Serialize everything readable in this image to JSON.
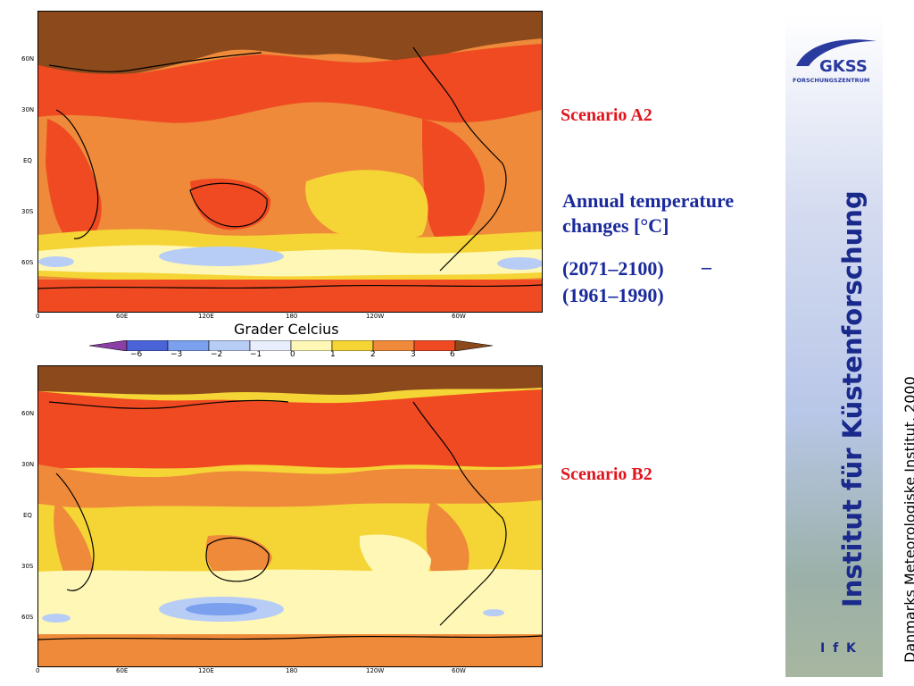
{
  "maps": {
    "a2": {
      "lat_ticks": [
        "60N",
        "30N",
        "EQ",
        "30S",
        "60S"
      ],
      "lon_ticks": [
        "0",
        "60E",
        "120E",
        "180",
        "120W",
        "60W"
      ]
    },
    "b2": {
      "lat_ticks": [
        "60N",
        "30N",
        "EQ",
        "30S",
        "60S"
      ],
      "lon_ticks": [
        "0",
        "60E",
        "120E",
        "180",
        "120W",
        "60W"
      ]
    }
  },
  "colorbar": {
    "title": "Grader Celcius",
    "labels": [
      "−6",
      "−3",
      "−2",
      "−1",
      "0",
      "1",
      "2",
      "3",
      "6"
    ],
    "colors": [
      "#8b3fa6",
      "#4a64d8",
      "#7aa0ee",
      "#b7cdf6",
      "#e9eefc",
      "#fff7b5",
      "#f5d435",
      "#ee8a3a",
      "#f04a22",
      "#8c4a1c"
    ]
  },
  "text": {
    "scenario_a2": "Scenario A2",
    "scenario_b2": "Scenario B2",
    "caption_line1": "Annual temperature",
    "caption_line2": "changes [°C]",
    "period_a": "(2071–2100)",
    "period_dash": "–",
    "period_b": "(1961–1990)"
  },
  "sidebar": {
    "logo_text": "GKSS",
    "logo_subtext": "FORSCHUNGSZENTRUM",
    "vertical_title": "Institut für Küstenforschung",
    "abbrev": "I f K",
    "colors": {
      "logo_blue": "#2a3a9e"
    }
  },
  "credit": "Danmarks Meteorologiske Institut, 2000",
  "palette": {
    "deep_brown": "#8c4a1c",
    "red": "#f04a22",
    "orange": "#ee8a3a",
    "yellow": "#f5d435",
    "pale_yellow": "#fff7b5",
    "light_blue": "#b7cdf6",
    "blue": "#7aa0ee"
  }
}
